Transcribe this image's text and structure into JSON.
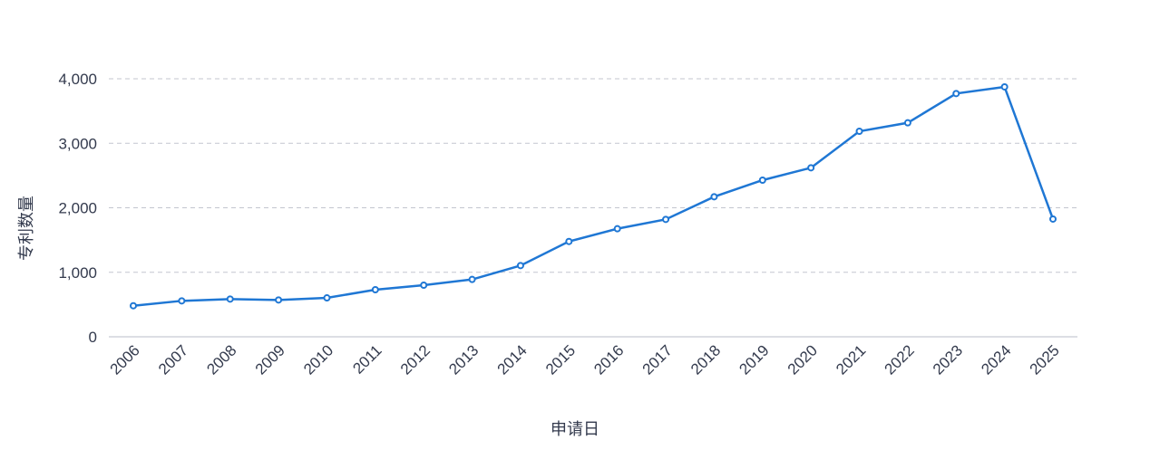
{
  "chart_data": {
    "type": "line",
    "xlabel": "申请日",
    "ylabel": "专利数量",
    "categories": [
      "2006",
      "2007",
      "2008",
      "2009",
      "2010",
      "2011",
      "2012",
      "2013",
      "2014",
      "2015",
      "2016",
      "2017",
      "2018",
      "2019",
      "2020",
      "2021",
      "2022",
      "2023",
      "2024",
      "2025"
    ],
    "values": [
      481,
      557,
      585,
      571,
      603,
      730,
      800,
      889,
      1104,
      1478,
      1675,
      1820,
      2171,
      2428,
      2620,
      3186,
      3317,
      3771,
      3874,
      1825
    ],
    "ylim": [
      0,
      4000
    ],
    "yticks": [
      0,
      1000,
      2000,
      3000,
      4000
    ],
    "ytick_labels": [
      "0",
      "1,000",
      "2,000",
      "3,000",
      "4,000"
    ],
    "grid": true,
    "color": "#1f77d4"
  }
}
